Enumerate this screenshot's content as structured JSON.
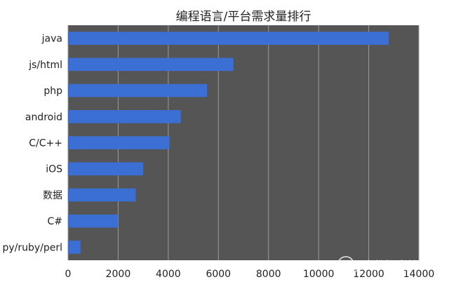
{
  "chart_data": {
    "type": "bar",
    "orientation": "horizontal",
    "title": "编程语言/平台需求量排行",
    "categories": [
      "java",
      "js/html",
      "php",
      "android",
      "C/C++",
      "iOS",
      "数据",
      "C#",
      "py/ruby/perl"
    ],
    "values": [
      12800,
      6600,
      5550,
      4500,
      4050,
      3000,
      2700,
      2000,
      500
    ],
    "x_ticks": [
      0,
      2000,
      4000,
      6000,
      8000,
      10000,
      12000,
      14000
    ],
    "xlim": [
      0,
      14000
    ],
    "xlabel": "",
    "ylabel": "",
    "grid": true,
    "legend": "none",
    "colors": {
      "bar": "#3b6fd4",
      "plot_background": "#555555",
      "grid": "#9a9a9a"
    }
  },
  "watermark": {
    "text": "大数据文摘",
    "icon": "wechat-icon"
  }
}
